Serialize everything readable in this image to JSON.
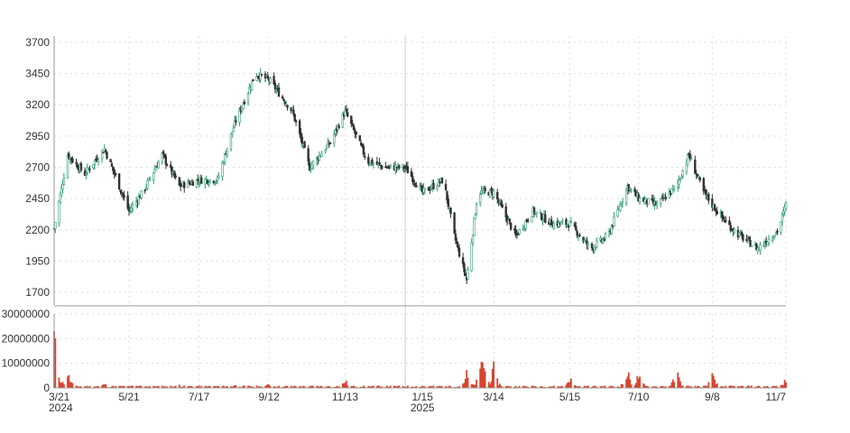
{
  "chart_data": [
    {
      "type": "candlestick",
      "title": "",
      "xlabel": "",
      "ylabel": "",
      "ylim": [
        1600,
        3750
      ],
      "y_ticks": [
        "3700",
        "3450",
        "3200",
        "2950",
        "2700",
        "2450",
        "2200",
        "1950",
        "1700"
      ],
      "grid": true,
      "colors": {
        "up": "#2e9e6e",
        "down": "#333333"
      },
      "close_series_approx": {
        "x": [
          "2024-03-21",
          "2024-04-01",
          "2024-04-15",
          "2024-05-01",
          "2024-05-21",
          "2024-06-01",
          "2024-06-17",
          "2024-07-01",
          "2024-07-17",
          "2024-08-01",
          "2024-08-15",
          "2024-09-01",
          "2024-09-12",
          "2024-10-01",
          "2024-10-15",
          "2024-11-01",
          "2024-11-13",
          "2024-12-01",
          "2024-12-16",
          "2025-01-01",
          "2025-01-15",
          "2025-02-01",
          "2025-02-10",
          "2025-02-20",
          "2025-03-01",
          "2025-03-14",
          "2025-04-01",
          "2025-04-15",
          "2025-05-01",
          "2025-05-15",
          "2025-06-01",
          "2025-06-15",
          "2025-07-01",
          "2025-07-10",
          "2025-07-25",
          "2025-08-10",
          "2025-08-20",
          "2025-09-01",
          "2025-09-08",
          "2025-09-20",
          "2025-10-01",
          "2025-10-15",
          "2025-11-01",
          "2025-11-07"
        ],
        "y": [
          2210,
          2800,
          2650,
          2850,
          2350,
          2500,
          2800,
          2550,
          2600,
          2600,
          3050,
          3450,
          3400,
          3150,
          2700,
          2900,
          3150,
          2750,
          2700,
          2700,
          2500,
          2600,
          2150,
          1800,
          2500,
          2500,
          2150,
          2350,
          2250,
          2250,
          2050,
          2150,
          2550,
          2450,
          2400,
          2550,
          2800,
          2500,
          2400,
          2250,
          2150,
          2050,
          2200,
          2400
        ]
      }
    },
    {
      "type": "bar",
      "title": "",
      "xlabel": "",
      "ylabel": "",
      "ylim": [
        0,
        30000000
      ],
      "y_ticks": [
        "30000000",
        "20000000",
        "10000000",
        "0"
      ],
      "color": "#d9442e",
      "values_approx": {
        "x": [
          "2024-03-21",
          "2024-04-01",
          "2024-05-01",
          "2024-06-01",
          "2024-07-01",
          "2024-08-15",
          "2024-09-12",
          "2024-11-13",
          "2025-01-15",
          "2025-02-20",
          "2025-03-05",
          "2025-03-14",
          "2025-05-15",
          "2025-07-01",
          "2025-07-10",
          "2025-08-10",
          "2025-09-08",
          "2025-11-07"
        ],
        "y": [
          25000000,
          7000000,
          2000000,
          1800000,
          1500000,
          1500000,
          2000000,
          3500000,
          1000000,
          6500000,
          15000000,
          9000000,
          5000000,
          7500000,
          6000000,
          8000000,
          6000000,
          4000000
        ]
      }
    }
  ],
  "x_axis": {
    "labels": [
      "3/21",
      "5/21",
      "7/17",
      "9/12",
      "11/13",
      "1/15",
      "3/14",
      "5/15",
      "7/10",
      "9/8",
      "11/7"
    ],
    "year_labels": [
      {
        "at": "3/21",
        "text": "2024"
      },
      {
        "at": "1/15",
        "text": "2025"
      }
    ]
  }
}
